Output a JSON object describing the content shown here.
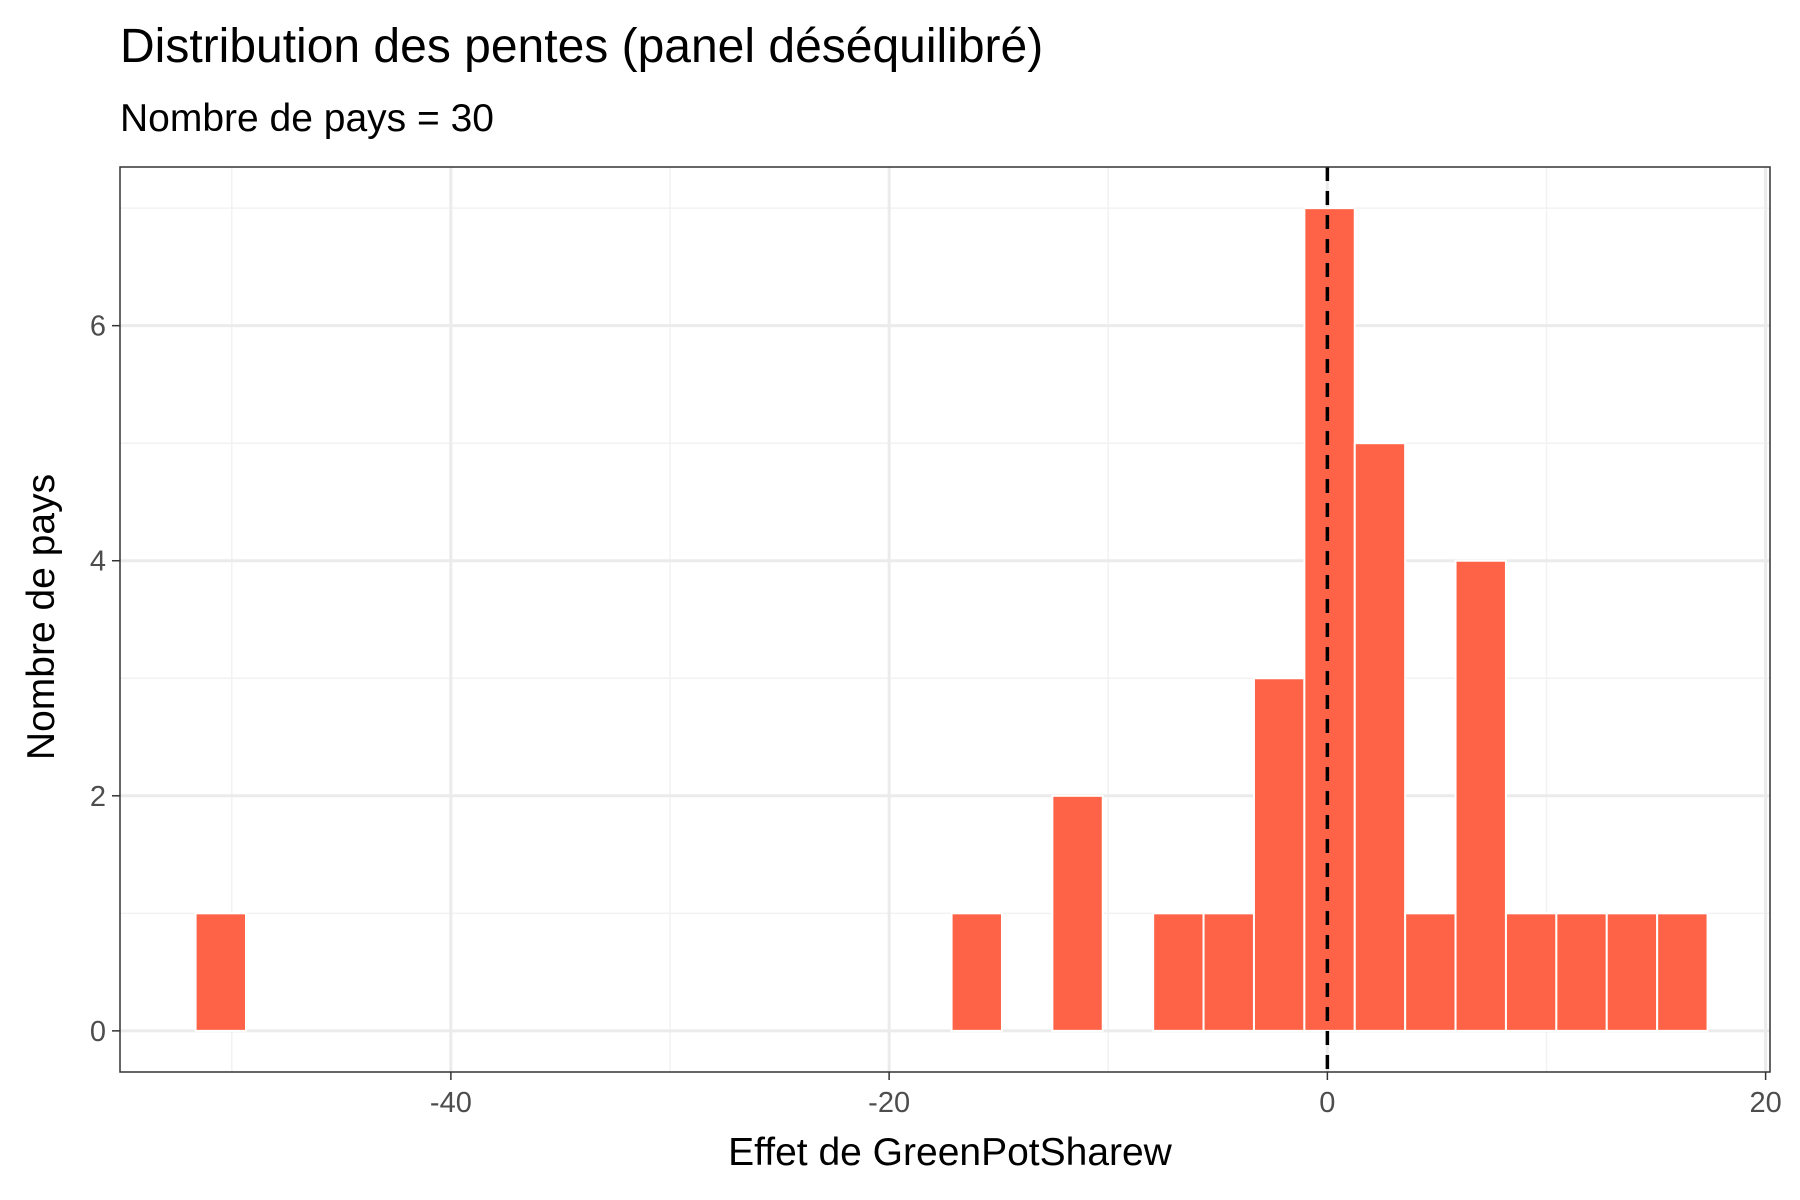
{
  "chart_data": {
    "type": "bar",
    "title": "Distribution des pentes (panel déséquilibré)",
    "subtitle": "Nombre de pays = 30",
    "xlabel": "Effet de GreenPotSharew",
    "ylabel": "Nombre de pays",
    "xlim": [
      -55.1,
      20.2
    ],
    "ylim": [
      -0.35,
      7.35
    ],
    "x_ticks": [
      -40,
      -20,
      0,
      20
    ],
    "y_ticks": [
      0,
      2,
      4,
      6
    ],
    "x_tick_labels": [
      "-40",
      "-20",
      "0",
      "20"
    ],
    "y_tick_labels": [
      "0",
      "2",
      "4",
      "6"
    ],
    "bin_width": 2.3,
    "bins": [
      {
        "x": -50.5,
        "count": 1
      },
      {
        "x": -16.0,
        "count": 1
      },
      {
        "x": -11.4,
        "count": 2
      },
      {
        "x": -6.8,
        "count": 1
      },
      {
        "x": -4.5,
        "count": 1
      },
      {
        "x": -2.2,
        "count": 3
      },
      {
        "x": 0.1,
        "count": 7
      },
      {
        "x": 2.4,
        "count": 5
      },
      {
        "x": 4.7,
        "count": 1
      },
      {
        "x": 7.0,
        "count": 4
      },
      {
        "x": 9.3,
        "count": 1
      },
      {
        "x": 11.6,
        "count": 1
      },
      {
        "x": 13.9,
        "count": 1
      },
      {
        "x": 16.2,
        "count": 1
      }
    ],
    "reference_line": {
      "x": 0,
      "style": "dashed",
      "color": "#000000"
    },
    "bar_color": "#FF6347",
    "grid": true,
    "legend": "none"
  }
}
